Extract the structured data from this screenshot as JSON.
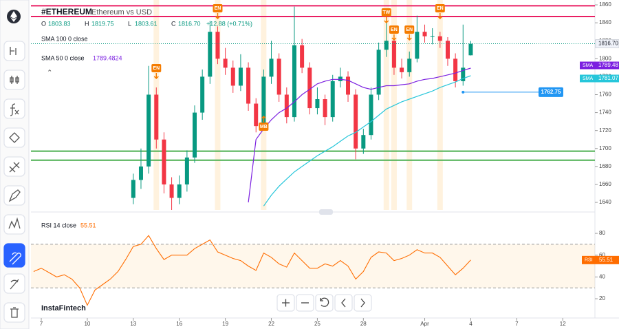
{
  "chart_data": [
    {
      "type": "candlestick",
      "title": "#ETHEREUM",
      "subtitle": "Ethereum vs USD",
      "ohlc_legend": [
        {
          "label": "O",
          "value": "1803.83"
        },
        {
          "label": "H",
          "value": "1819.75"
        },
        {
          "label": "L",
          "value": "1803.61"
        },
        {
          "label": "C",
          "value": "1816.70"
        }
      ],
      "change": "+12.88 (+0.71%)",
      "categories": [
        null,
        "7",
        null,
        null,
        null,
        null,
        null,
        "10",
        null,
        null,
        null,
        null,
        null,
        "13",
        null,
        null,
        null,
        null,
        null,
        "16",
        null,
        null,
        null,
        null,
        null,
        "19",
        null,
        null,
        null,
        null,
        null,
        "22",
        null,
        null,
        null,
        null,
        null,
        "25",
        null,
        null,
        null,
        null,
        null,
        "28",
        null,
        null,
        null,
        null,
        null,
        null,
        null,
        "Apr",
        null,
        null,
        null,
        null,
        null,
        "4",
        null,
        null,
        null,
        null,
        null,
        "7",
        null,
        null,
        null,
        null,
        null,
        "12",
        null,
        null,
        null
      ],
      "open": [
        null,
        null,
        null,
        null,
        null,
        null,
        null,
        null,
        null,
        null,
        null,
        null,
        null,
        1645,
        1665,
        1680,
        1760,
        1710,
        1660,
        1645,
        1660,
        1690,
        1740,
        1780,
        1830,
        1800,
        1790,
        1770,
        1790,
        1750,
        1725,
        1780,
        1800,
        1760,
        1735,
        1815,
        1790,
        1745,
        1755,
        1735,
        1775,
        1780,
        1760,
        1700,
        1715,
        1760,
        1810,
        1820,
        1790,
        1785,
        1800,
        1830,
        1825,
        1825,
        1820,
        1800,
        1775,
        1803.83,
        null,
        null,
        null,
        null,
        null,
        null,
        null,
        null,
        null,
        null,
        null,
        null,
        null,
        null,
        null
      ],
      "high": [
        null,
        null,
        null,
        null,
        null,
        null,
        null,
        null,
        null,
        null,
        null,
        null,
        null,
        1672,
        1700,
        1792,
        1768,
        1718,
        1668,
        1670,
        1698,
        1748,
        1788,
        1842,
        1836,
        1812,
        1798,
        1805,
        1796,
        1756,
        1788,
        1820,
        1806,
        1768,
        1858,
        1822,
        1796,
        1768,
        1760,
        1782,
        1790,
        1786,
        1766,
        1722,
        1768,
        1818,
        1840,
        1826,
        1800,
        1808,
        1848,
        1838,
        1834,
        1830,
        1824,
        1806,
        1838,
        1819.75,
        null,
        null,
        null,
        null,
        null,
        null,
        null,
        null,
        null,
        null,
        null,
        null,
        null,
        null,
        null
      ],
      "low": [
        null,
        null,
        null,
        null,
        null,
        null,
        null,
        null,
        null,
        null,
        null,
        null,
        null,
        1638,
        1655,
        1672,
        1700,
        1650,
        1630,
        1638,
        1652,
        1684,
        1732,
        1772,
        1794,
        1782,
        1762,
        1764,
        1742,
        1718,
        1720,
        1772,
        1752,
        1728,
        1730,
        1784,
        1738,
        1738,
        1726,
        1730,
        1768,
        1752,
        1688,
        1694,
        1710,
        1754,
        1802,
        1782,
        1778,
        1780,
        1796,
        1818,
        1816,
        1812,
        1792,
        1768,
        1770,
        1803.61,
        null,
        null,
        null,
        null,
        null,
        null,
        null,
        null,
        null,
        null,
        null,
        null,
        null,
        null,
        null
      ],
      "close": [
        null,
        null,
        null,
        null,
        null,
        null,
        null,
        null,
        null,
        null,
        null,
        null,
        null,
        1665,
        1680,
        1760,
        1710,
        1660,
        1645,
        1660,
        1690,
        1740,
        1780,
        1830,
        1800,
        1790,
        1770,
        1790,
        1750,
        1725,
        1780,
        1800,
        1760,
        1735,
        1815,
        1790,
        1745,
        1755,
        1735,
        1775,
        1780,
        1760,
        1700,
        1715,
        1760,
        1810,
        1820,
        1790,
        1785,
        1800,
        1830,
        1825,
        1825,
        1820,
        1800,
        1775,
        1790,
        1816.7,
        null,
        null,
        null,
        null,
        null,
        null,
        null,
        null,
        null,
        null,
        null,
        null,
        null,
        null,
        null
      ],
      "close_label": "1816.70",
      "up_color": "#089981",
      "down_color": "#f23645",
      "series": [
        {
          "name": "SMA",
          "legend": "SMA 100 0 close",
          "color": "#26c6da",
          "last_label": "1781.07",
          "values": [
            null,
            null,
            null,
            null,
            null,
            null,
            null,
            null,
            null,
            null,
            null,
            null,
            null,
            null,
            null,
            null,
            null,
            null,
            null,
            null,
            null,
            null,
            null,
            null,
            null,
            null,
            null,
            null,
            null,
            null,
            1636,
            1648,
            1658,
            1666,
            1674,
            1680,
            1686,
            1692,
            1697,
            1702,
            1708,
            1714,
            1718,
            1724,
            1730,
            1737,
            1744,
            1748,
            1752,
            1755,
            1758,
            1761,
            1764,
            1768,
            1771,
            1774,
            1778,
            1781.07,
            null,
            null,
            null,
            null,
            null,
            null,
            null,
            null,
            null,
            null,
            null,
            null,
            null,
            null,
            null
          ]
        },
        {
          "name": "SMA",
          "legend": "SMA 50 0 close",
          "legend_value": "1789.4824",
          "color": "#7b1fe0",
          "last_label": "1789.48",
          "values": [
            null,
            null,
            null,
            null,
            null,
            null,
            null,
            null,
            null,
            null,
            null,
            null,
            null,
            null,
            null,
            null,
            null,
            null,
            null,
            null,
            null,
            null,
            null,
            null,
            null,
            null,
            null,
            null,
            1640,
            1710,
            1722,
            1732,
            1740,
            1745,
            1752,
            1760,
            1766,
            1772,
            1775,
            1777,
            1777,
            1776,
            1772,
            1768,
            1766,
            1768,
            1770,
            1770,
            1771,
            1772,
            1775,
            1777,
            1778,
            1780,
            1782,
            1784,
            1787,
            1789.48,
            null,
            null,
            null,
            null,
            null,
            null,
            null,
            null,
            null,
            null,
            null,
            null,
            null,
            null,
            null
          ]
        }
      ],
      "levels": [
        {
          "value": 1859,
          "color": "#e91e63"
        },
        {
          "value": 1847,
          "color": "#e91e63"
        },
        {
          "value": 1697,
          "color": "#4caf50"
        },
        {
          "value": 1687,
          "color": "#4caf50"
        }
      ],
      "marker": {
        "value": 1762.75,
        "label": "1762.75",
        "color": "#2196f3"
      },
      "annotations": [
        "EN",
        "EN",
        "MB",
        "TW",
        "EN",
        "EN",
        "EN"
      ],
      "ylim": [
        1631.6,
        1865.4
      ],
      "yticks": [
        1640,
        1660,
        1680,
        1700,
        1720,
        1740,
        1760,
        1780,
        1800,
        1820,
        1840,
        1860
      ],
      "watermark": "InstaFintech"
    },
    {
      "type": "line",
      "legend": "RSI 14 close",
      "series": [
        {
          "name": "RSI",
          "color": "#ff6d00",
          "last_label": "55.51",
          "values": [
            45,
            48,
            44,
            40,
            42,
            38,
            30,
            14,
            28,
            33,
            38,
            45,
            56,
            68,
            70,
            78,
            66,
            56,
            60,
            60,
            60,
            66,
            70,
            74,
            63,
            60,
            57,
            55,
            50,
            46,
            62,
            58,
            52,
            49,
            62,
            55,
            48,
            48,
            52,
            50,
            55,
            50,
            38,
            45,
            58,
            63,
            62,
            55,
            57,
            60,
            65,
            62,
            62,
            58,
            50,
            42,
            48,
            55.51,
            null,
            null,
            null,
            null,
            null,
            null,
            null,
            null,
            null,
            null,
            null,
            null,
            null,
            null,
            null
          ]
        }
      ],
      "bands": [
        30,
        70
      ],
      "ylim": [
        3.6,
        95.2
      ],
      "yticks": [
        20,
        40,
        60,
        80
      ]
    }
  ]
}
